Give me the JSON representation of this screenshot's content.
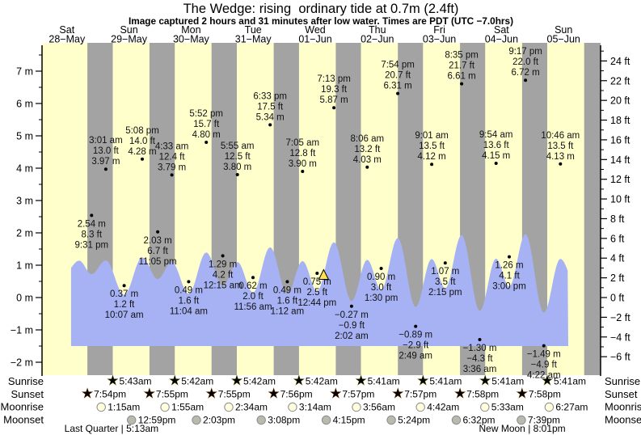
{
  "chart_data": {
    "type": "area",
    "title": "The Wedge: rising  ordinary tide at 0.7m (2.4ft)",
    "subtitle": "Image captured 2 hours and 31 minutes after low water. Times are PDT (UTC −7.0hrs)",
    "days": [
      {
        "name": "Sat",
        "date": "28−May"
      },
      {
        "name": "Sun",
        "date": "29−May"
      },
      {
        "name": "Mon",
        "date": "30−May"
      },
      {
        "name": "Tue",
        "date": "31−May"
      },
      {
        "name": "Wed",
        "date": "01−Jun"
      },
      {
        "name": "Thu",
        "date": "02−Jun"
      },
      {
        "name": "Fri",
        "date": "03−Jun"
      },
      {
        "name": "Sat",
        "date": "04−Jun"
      },
      {
        "name": "Sun",
        "date": "05−Jun"
      }
    ],
    "y_axis_left": {
      "unit": "m",
      "ticks": [
        "7 m",
        "6 m",
        "5 m",
        "4 m",
        "3 m",
        "2 m",
        "1 m",
        "0 m",
        "−1 m",
        "−2 m"
      ]
    },
    "y_axis_right": {
      "unit": "ft",
      "ticks": [
        "24 ft",
        "22 ft",
        "20 ft",
        "18 ft",
        "16 ft",
        "14 ft",
        "12 ft",
        "10 ft",
        "8 ft",
        "6 ft",
        "4 ft",
        "2 ft",
        "0 ft",
        "−2 ft",
        "−4 ft",
        "−6 ft"
      ]
    },
    "tides": [
      {
        "day": 0,
        "type": "low",
        "time": "9:31 pm",
        "ft": "8.3 ft",
        "m": "2.54 m"
      },
      {
        "day": 1,
        "type": "high",
        "time": "3:01 am",
        "ft": "13.0 ft",
        "m": "3.97 m"
      },
      {
        "day": 1,
        "type": "low",
        "time": "10:07 am",
        "ft": "1.2 ft",
        "m": "0.37 m"
      },
      {
        "day": 1,
        "type": "high",
        "time": "5:08 pm",
        "ft": "14.0 ft",
        "m": "4.28 m"
      },
      {
        "day": 1,
        "type": "low",
        "time": "11:05 pm",
        "ft": "6.7 ft",
        "m": "2.03 m"
      },
      {
        "day": 2,
        "type": "high",
        "time": "4:33 am",
        "ft": "12.4 ft",
        "m": "3.79 m"
      },
      {
        "day": 2,
        "type": "low",
        "time": "11:04 am",
        "ft": "1.6 ft",
        "m": "0.49 m"
      },
      {
        "day": 2,
        "type": "high",
        "time": "5:52 pm",
        "ft": "15.7 ft",
        "m": "4.80 m"
      },
      {
        "day": 3,
        "type": "low",
        "time": "12:15 am",
        "ft": "4.2 ft",
        "m": "1.29 m"
      },
      {
        "day": 3,
        "type": "high",
        "time": "5:55 am",
        "ft": "12.5 ft",
        "m": "3.80 m"
      },
      {
        "day": 3,
        "type": "low",
        "time": "11:56 am",
        "ft": "2.0 ft",
        "m": "0.62 m"
      },
      {
        "day": 3,
        "type": "high",
        "time": "6:33 pm",
        "ft": "17.5 ft",
        "m": "5.34 m"
      },
      {
        "day": 4,
        "type": "low",
        "time": "1:12 am",
        "ft": "1.6 ft",
        "m": "0.49 m"
      },
      {
        "day": 4,
        "type": "high",
        "time": "7:05 am",
        "ft": "12.8 ft",
        "m": "3.90 m"
      },
      {
        "day": 4,
        "type": "low",
        "time": "12:44 pm",
        "ft": "2.5 ft",
        "m": "0.75 m"
      },
      {
        "day": 4,
        "type": "high",
        "time": "7:13 pm",
        "ft": "19.3 ft",
        "m": "5.87 m"
      },
      {
        "day": 5,
        "type": "low",
        "time": "2:02 am",
        "ft": "−0.9 ft",
        "m": "−0.27 m"
      },
      {
        "day": 5,
        "type": "high",
        "time": "8:06 am",
        "ft": "13.2 ft",
        "m": "4.03 m"
      },
      {
        "day": 5,
        "type": "low",
        "time": "1:30 pm",
        "ft": "3.0 ft",
        "m": "0.90 m"
      },
      {
        "day": 5,
        "type": "high",
        "time": "7:54 pm",
        "ft": "20.7 ft",
        "m": "6.31 m"
      },
      {
        "day": 6,
        "type": "low",
        "time": "2:49 am",
        "ft": "−2.9 ft",
        "m": "−0.89 m"
      },
      {
        "day": 6,
        "type": "high",
        "time": "9:01 am",
        "ft": "13.5 ft",
        "m": "4.12 m"
      },
      {
        "day": 6,
        "type": "low",
        "time": "2:15 pm",
        "ft": "3.5 ft",
        "m": "1.07 m"
      },
      {
        "day": 6,
        "type": "high",
        "time": "8:35 pm",
        "ft": "21.7 ft",
        "m": "6.61 m"
      },
      {
        "day": 7,
        "type": "low",
        "time": "3:36 am",
        "ft": "−4.3 ft",
        "m": "−1.30 m"
      },
      {
        "day": 7,
        "type": "high",
        "time": "9:54 am",
        "ft": "13.6 ft",
        "m": "4.15 m"
      },
      {
        "day": 7,
        "type": "low",
        "time": "3:00 pm",
        "ft": "4.1 ft",
        "m": "1.26 m"
      },
      {
        "day": 7,
        "type": "high",
        "time": "9:17 pm",
        "ft": "22.0 ft",
        "m": "6.72 m"
      },
      {
        "day": 8,
        "type": "low",
        "time": "4:22 am",
        "ft": "−4.9 ft",
        "m": "−1.49 m"
      },
      {
        "day": 8,
        "type": "high",
        "time": "10:46 am",
        "ft": "13.5 ft",
        "m": "4.13 m"
      }
    ],
    "current_marker": {
      "day": 4,
      "time": "3:15 pm",
      "height_m": 0.7
    },
    "astro": {
      "sunrise": {
        "label": "Sunrise",
        "events": [
          {
            "day": 1,
            "time": "5:43am"
          },
          {
            "day": 2,
            "time": "5:42am"
          },
          {
            "day": 3,
            "time": "5:42am"
          },
          {
            "day": 4,
            "time": "5:42am"
          },
          {
            "day": 5,
            "time": "5:41am"
          },
          {
            "day": 6,
            "time": "5:41am"
          },
          {
            "day": 7,
            "time": "5:41am"
          },
          {
            "day": 8,
            "time": "5:41am"
          }
        ]
      },
      "sunset": {
        "label": "Sunset",
        "events": [
          {
            "day": 0,
            "time": "7:54pm"
          },
          {
            "day": 1,
            "time": "7:55pm"
          },
          {
            "day": 2,
            "time": "7:55pm"
          },
          {
            "day": 3,
            "time": "7:56pm"
          },
          {
            "day": 4,
            "time": "7:57pm"
          },
          {
            "day": 5,
            "time": "7:57pm"
          },
          {
            "day": 6,
            "time": "7:58pm"
          },
          {
            "day": 7,
            "time": "7:58pm"
          }
        ]
      },
      "moonrise": {
        "label": "Moonrise",
        "events": [
          {
            "day": 1,
            "time": "1:15am"
          },
          {
            "day": 2,
            "time": "1:55am"
          },
          {
            "day": 3,
            "time": "2:34am"
          },
          {
            "day": 4,
            "time": "3:14am"
          },
          {
            "day": 5,
            "time": "3:56am"
          },
          {
            "day": 6,
            "time": "4:42am"
          },
          {
            "day": 7,
            "time": "5:33am"
          },
          {
            "day": 8,
            "time": "6:27am"
          }
        ]
      },
      "moonset": {
        "label": "Moonset",
        "events": [
          {
            "day": 1,
            "time": "12:59pm"
          },
          {
            "day": 2,
            "time": "2:03pm"
          },
          {
            "day": 3,
            "time": "3:08pm"
          },
          {
            "day": 4,
            "time": "4:15pm"
          },
          {
            "day": 5,
            "time": "5:24pm"
          },
          {
            "day": 6,
            "time": "6:32pm"
          },
          {
            "day": 7,
            "time": "7:39pm"
          }
        ]
      }
    },
    "phases": [
      {
        "day": 1,
        "time": "5:13am",
        "label": "Last Quarter | 5:13am"
      },
      {
        "day": 7,
        "time": "8:01pm",
        "label": "New Moon | 8:01pm"
      }
    ],
    "colors": {
      "day_band": "#ffffcc",
      "night_band": "#a3a3a3",
      "tide_fill": "#a6b2f4",
      "day_label": "#e62c2c",
      "sunrise_star": "#b9b944",
      "sunrise_star_edge": "#6f6f0c",
      "sunset_star": "#cc6600",
      "sunset_star_edge": "#7a3c00",
      "moonrise_fill": "#ffffdd",
      "moonset_fill": "#b9b9ae",
      "moon_edge": "#8a8a8a",
      "marker_fill": "#ffe34d"
    }
  }
}
